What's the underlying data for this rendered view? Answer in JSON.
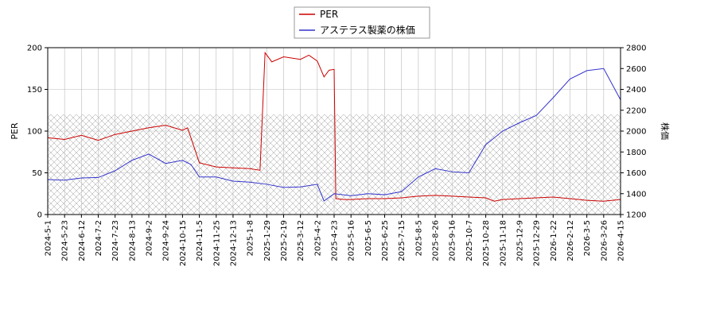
{
  "chart_data": {
    "type": "line",
    "legend": {
      "placement": "top-center",
      "entries": [
        {
          "name": "PER",
          "color": "#cc0000"
        },
        {
          "name": "アステラス製薬の株価",
          "color": "#3333cc"
        }
      ]
    },
    "x_ticks": [
      "2024-5-1",
      "2024-5-23",
      "2024-6-12",
      "2024-7-2",
      "2024-7-23",
      "2024-8-13",
      "2024-9-2",
      "2024-9-24",
      "2024-10-15",
      "2024-11-5",
      "2024-11-25",
      "2024-12-13",
      "2025-1-8",
      "2025-1-29",
      "2025-2-19",
      "2025-3-12",
      "2025-4-2",
      "2025-4-23",
      "2025-5-16",
      "2025-6-5",
      "2025-6-25",
      "2025-7-15",
      "2025-8-5",
      "2025-8-26",
      "2025-9-16",
      "2025-10-7",
      "2025-10-28",
      "2025-11-18",
      "2025-12-9",
      "2025-12-29",
      "2026-1-22",
      "2026-2-12",
      "2026-3-5",
      "2026-3-26",
      "2026-4-15"
    ],
    "y_left": {
      "label": "PER",
      "range": [
        0,
        200
      ],
      "ticks": [
        "0",
        "50",
        "100",
        "150",
        "200"
      ]
    },
    "y_right": {
      "label": "株価",
      "range": [
        1200,
        2800
      ],
      "ticks": [
        "1200",
        "1400",
        "1600",
        "1800",
        "2000",
        "2200",
        "2400",
        "2600",
        "2800"
      ]
    },
    "grid": true,
    "hatched_band": {
      "axis": "left",
      "from": 0,
      "to": 120
    },
    "series": [
      {
        "name": "PER",
        "axis": "left",
        "color": "#cc0000",
        "x_index": [
          0,
          1,
          2,
          3,
          4,
          5,
          6,
          7,
          8,
          8.3,
          9,
          10,
          11,
          12,
          12.6,
          12.9,
          13.3,
          14,
          15,
          15.5,
          16,
          16.4,
          16.7,
          17,
          17.1,
          17.6,
          18,
          19,
          20,
          21,
          22,
          23,
          24,
          25,
          26,
          26.5,
          27,
          28,
          29,
          30,
          31,
          32,
          33,
          34
        ],
        "values": [
          92,
          90,
          95,
          89,
          96,
          100,
          104,
          107,
          101,
          104,
          62,
          57,
          56,
          55,
          53,
          194,
          183,
          189,
          186,
          191,
          184,
          165,
          173,
          174,
          19,
          18,
          18,
          19,
          19,
          20,
          22,
          23,
          22,
          21,
          20,
          16,
          18,
          19,
          20,
          21,
          19,
          17,
          16,
          18
        ]
      },
      {
        "name": "アステラス製薬の株価",
        "axis": "right",
        "color": "#3333cc",
        "x_index": [
          0,
          1,
          2,
          3,
          4,
          5,
          6,
          7,
          8,
          8.5,
          9,
          10,
          11,
          12,
          13,
          14,
          15,
          16,
          16.4,
          17,
          18,
          19,
          20,
          21,
          22,
          23,
          24,
          25,
          26,
          27,
          28,
          29,
          30,
          31,
          32,
          33,
          34
        ],
        "values": [
          1535,
          1530,
          1550,
          1555,
          1620,
          1720,
          1780,
          1690,
          1720,
          1680,
          1560,
          1560,
          1520,
          1510,
          1490,
          1460,
          1465,
          1490,
          1330,
          1400,
          1380,
          1400,
          1390,
          1420,
          1560,
          1640,
          1610,
          1600,
          1870,
          2000,
          2080,
          2150,
          2320,
          2500,
          2580,
          2600,
          2300
        ]
      }
    ]
  }
}
